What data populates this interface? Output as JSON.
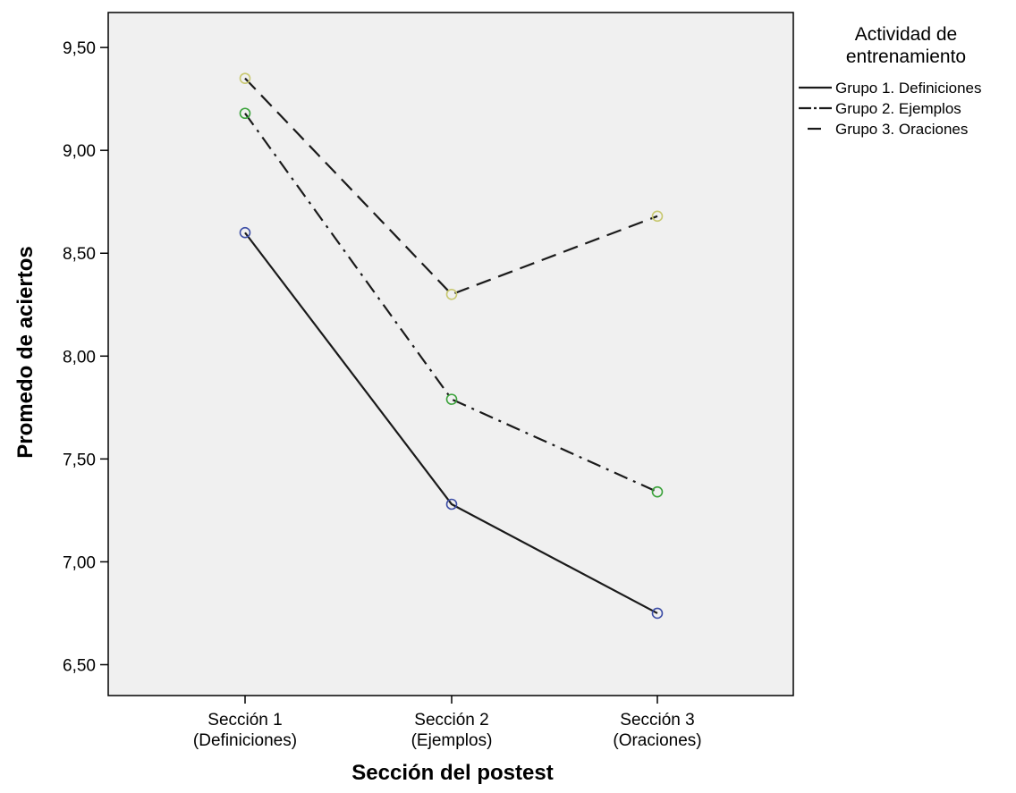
{
  "chart_data": {
    "type": "line",
    "xlabel": "Sección del postest",
    "ylabel": "Promedo de aciertos",
    "categories": [
      [
        "Sección 1",
        "(Definiciones)"
      ],
      [
        "Sección 2",
        "(Ejemplos)"
      ],
      [
        "Sección 3",
        "(Oraciones)"
      ]
    ],
    "ylim": [
      6.35,
      9.67
    ],
    "yticks": [
      6.5,
      7.0,
      7.5,
      8.0,
      8.5,
      9.0,
      9.5
    ],
    "ytick_labels": [
      "6,50",
      "7,00",
      "7,50",
      "8,00",
      "8,50",
      "9,00",
      "9,50"
    ],
    "grid": false,
    "plot_background": "#f0f0f0",
    "legend": {
      "position": "right",
      "title_lines": [
        "Actividad de",
        "entrenamiento"
      ]
    },
    "series": [
      {
        "name": "Grupo 1. Definiciones",
        "values": [
          8.6,
          7.28,
          6.75
        ],
        "dash": "solid",
        "marker_color": "#3d4ea6"
      },
      {
        "name": "Grupo 2. Ejemplos",
        "values": [
          9.18,
          7.79,
          7.34
        ],
        "dash": "dash-dot",
        "marker_color": "#3aa23a"
      },
      {
        "name": "Grupo 3. Oraciones",
        "values": [
          9.35,
          8.3,
          8.68
        ],
        "dash": "dashed",
        "marker_color": "#c8c870"
      }
    ]
  }
}
